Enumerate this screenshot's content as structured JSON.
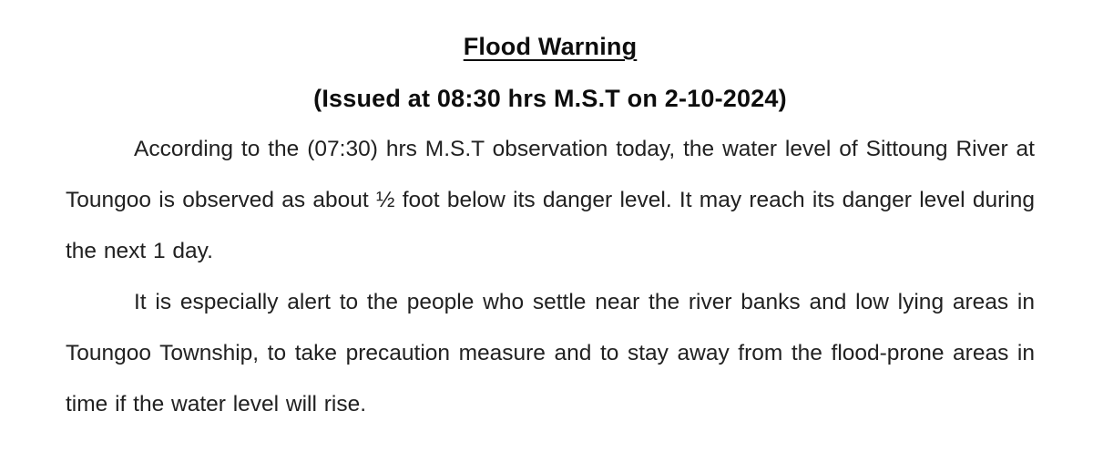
{
  "document": {
    "title": "Flood Warning",
    "subtitle": "(Issued at 08:30 hrs M.S.T on 2-10-2024)",
    "paragraphs": [
      "According to the (07:30) hrs M.S.T observation today, the water level of Sittoung River at Toungoo is observed as about ½ foot below its danger level. It may reach its danger level during the next 1 day.",
      "It is especially alert to the people who settle near the river banks and low lying areas in Toungoo Township, to take precaution measure and to stay away from the flood-prone areas in time if the water level will rise."
    ],
    "colors": {
      "background": "#ffffff",
      "heading_text": "#0d0d0d",
      "body_text": "#212121"
    }
  }
}
